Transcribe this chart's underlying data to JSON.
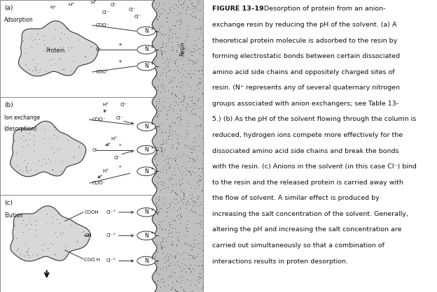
{
  "caption_bold": "FIGURE 13–19",
  "caption_lines": [
    "Desorption of protein from an anion-",
    "exchange resin by reducing the pH of the solvent. (a) A",
    "theoretical protein molecule is adsorbed to the resin by",
    "forming electrostatic bonds between certain dissociated",
    "amino acid side chains and oppositely charged sites of",
    "resin. (N⁺ represents any of several quaternary nitrogen",
    "groups associated with anion exchangers; see Table 13-",
    "5.) (b) As the pH of the solvent flowing through the column is",
    "reduced, hydrogen ions compete more effectively for the",
    "dissociated amino acid side chains and break the bonds",
    "with the resin. (c) Anions in the solvent (in this case Cl⁻) bind",
    "to the resin and the released protein is carried away with",
    "the flow of solvent. A similar effect is produced by",
    "increasing the salt concentration of the solvent. Generally,",
    "altering the pH and increasing the salt concentration are",
    "carried out simultaneously so that a combination of",
    "interactions results in proten desorption."
  ],
  "panel_labels": [
    "(a)",
    "(b)",
    "(c)"
  ],
  "panel_sublabels": [
    "Adsorption",
    "Ion exchange\n(desorption)",
    "Elution"
  ],
  "resin_label": "Resin",
  "protein_label": "Protein",
  "dot_color": "#555555",
  "resin_fill": "#c8c8c8",
  "protein_fill": "#d8d8d8",
  "edge_color": "#333333",
  "text_color": "#111111",
  "bg_color": "#ffffff"
}
